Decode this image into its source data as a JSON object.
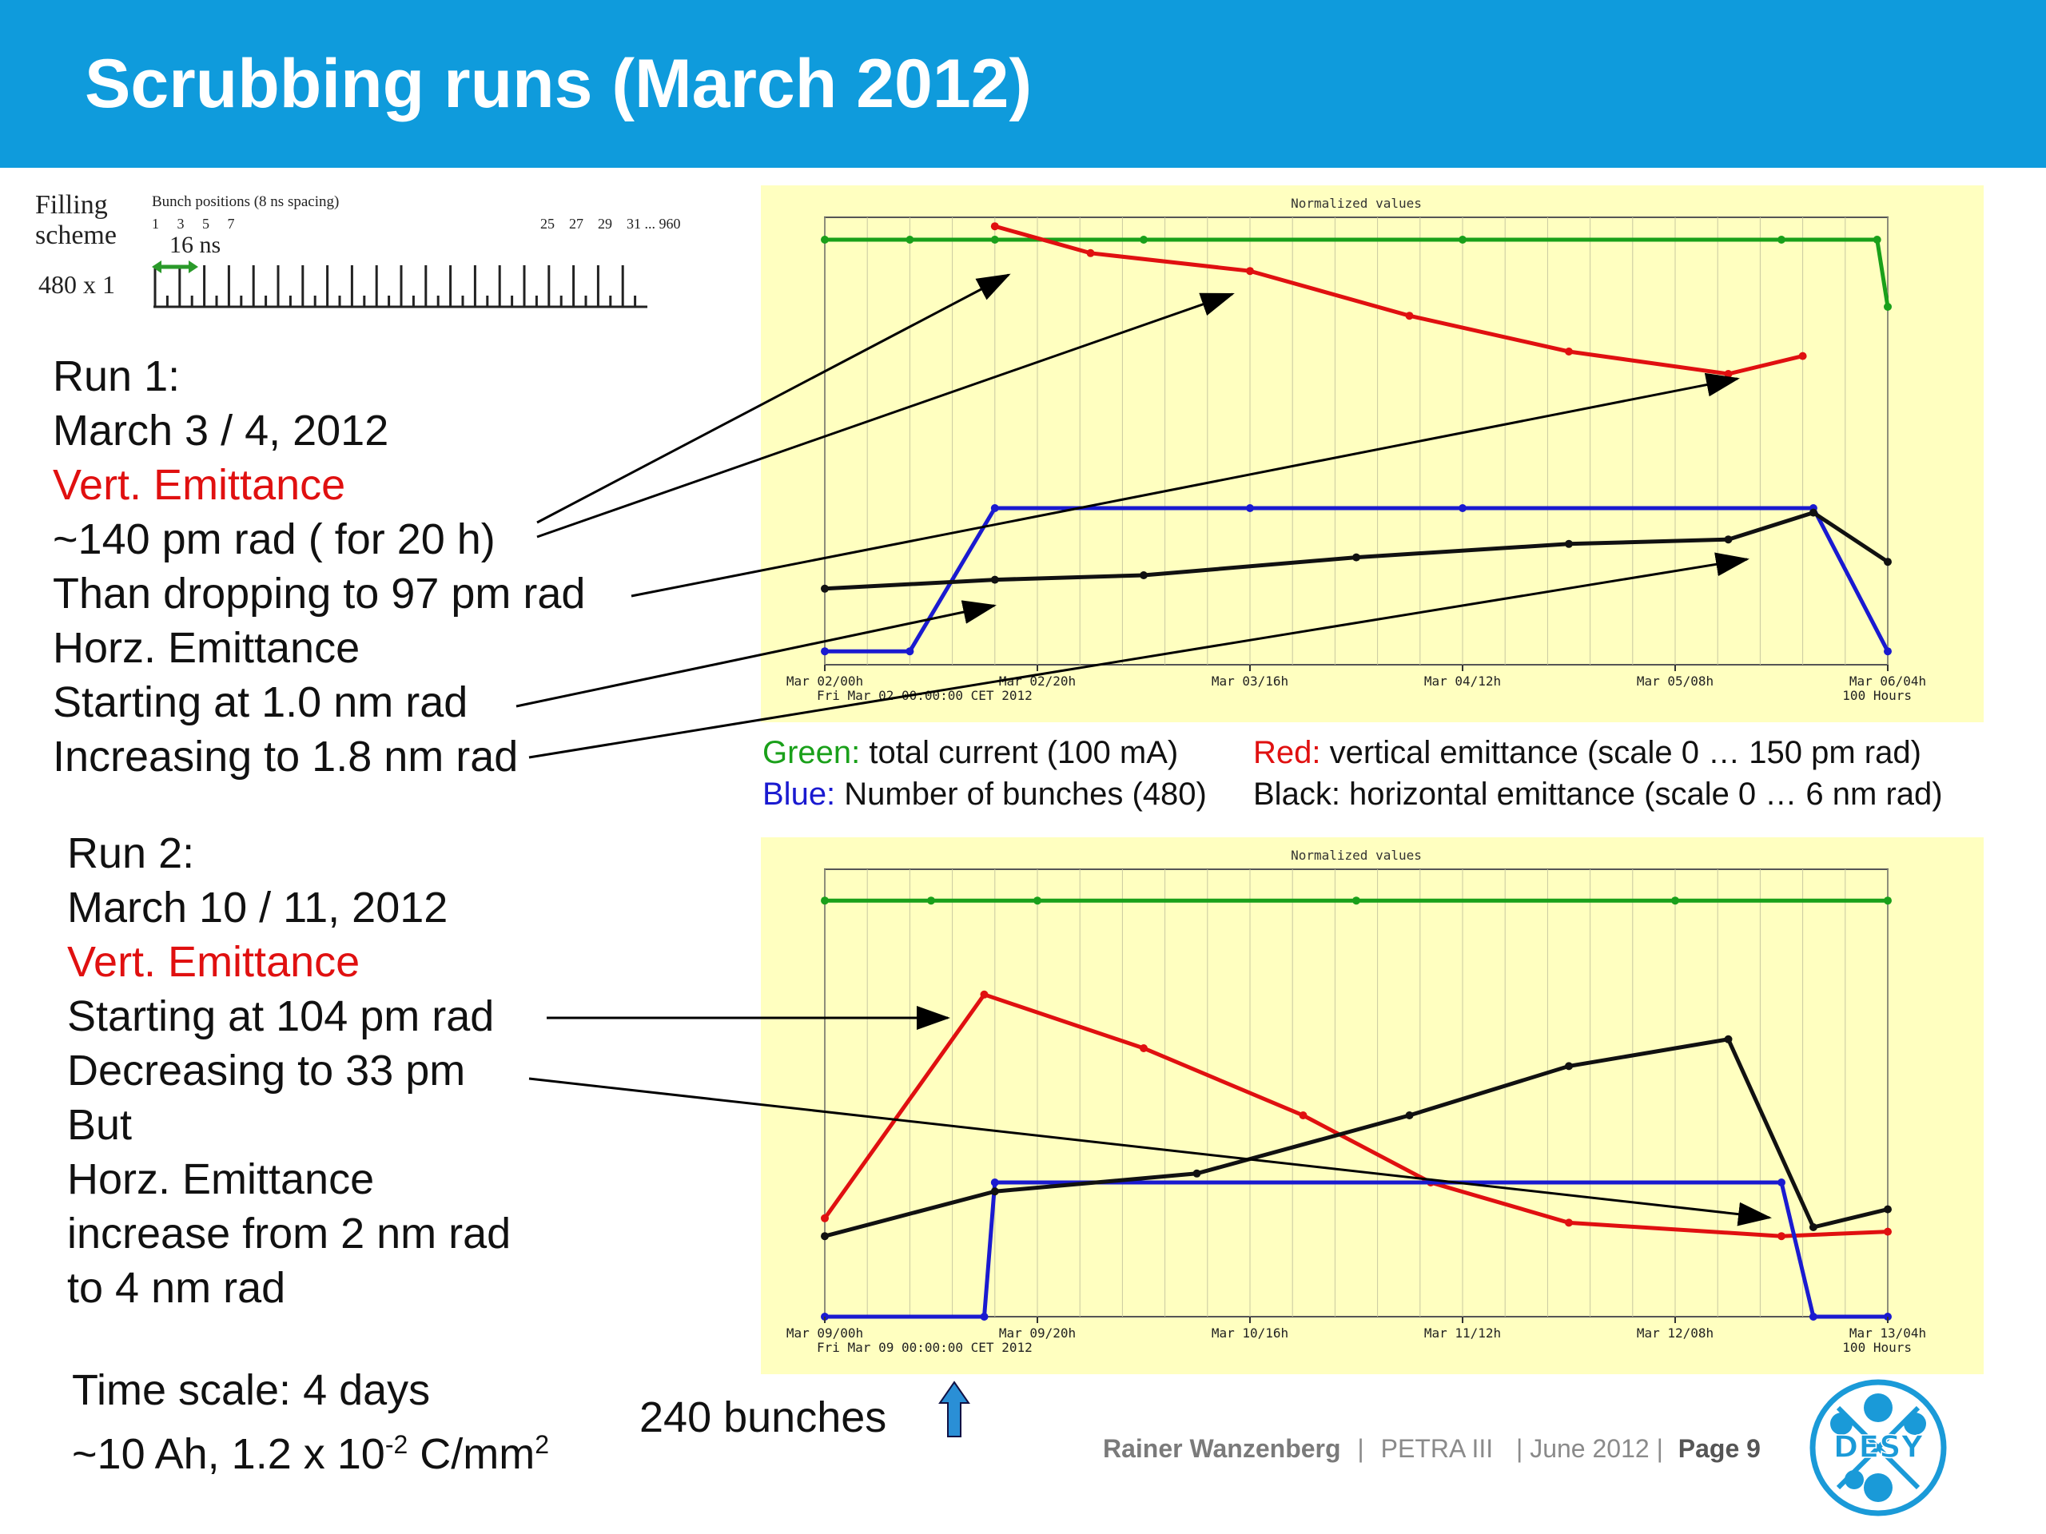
{
  "title": "Scrubbing runs (March 2012)",
  "filling": {
    "label_line1": "Filling",
    "label_line2": "scheme",
    "pattern": "480 x 1",
    "bunch_positions_label": "Bunch positions (8 ns spacing)",
    "left_numbers": "1     3     5     7",
    "right_numbers": "25    27    29    31 ... 960",
    "spacing": "16 ns"
  },
  "run1": {
    "lines": [
      "Run 1:",
      "March 3 / 4, 2012",
      "Vert. Emittance",
      "~140 pm rad ( for 20 h)",
      "Than dropping to 97 pm rad",
      "Horz. Emittance",
      "Starting at 1.0 nm rad",
      "Increasing to 1.8 nm rad"
    ]
  },
  "run2": {
    "lines": [
      "Run 2:",
      "March 10 / 11, 2012",
      "Vert. Emittance",
      "Starting at 104 pm rad",
      "Decreasing to 33 pm",
      "But",
      "Horz. Emittance",
      "increase from 2 nm rad",
      "to 4 nm rad"
    ]
  },
  "timescale": {
    "line1": "Time scale: 4 days",
    "line2_prefix": "~10 Ah, 1.2 x 10",
    "line2_exp": "-2",
    "line2_mid": " C/mm",
    "line2_sup": "2"
  },
  "bunches_note": "240 bunches",
  "legend": {
    "green_key": "Green:",
    "green_text": " total current (100 mA)",
    "red_key": "Red:",
    "red_text": " vertical emittance (scale 0 … 150 pm rad)",
    "blue_key": "Blue:",
    "blue_text": " Number of bunches (480)",
    "black_text": "Black: horizontal emittance (scale 0 … 6 nm rad)"
  },
  "footer": {
    "author": "Rainer Wanzenberg",
    "sep1": "|",
    "project": "PETRA III",
    "date": "| June  2012 |",
    "page": "Page 9"
  },
  "logo_text": "DESY",
  "colors": {
    "banner": "#0f9bdc",
    "chart_bg": "#ffffc0",
    "green": "#1aa01a",
    "red": "#e01010",
    "blue": "#1a1ad0",
    "black": "#111111"
  },
  "chart_data": [
    {
      "type": "line",
      "title": "Normalized values",
      "x_ticks": [
        "Mar 02/00h",
        "Mar 02/20h",
        "Mar 03/16h",
        "Mar 04/12h",
        "Mar 05/08h",
        "Mar 06/04h"
      ],
      "x_sublabel_left": "Fri Mar 02 00:00:00 CET 2012",
      "x_sublabel_right": "100 Hours",
      "series": [
        {
          "name": "total current",
          "color": "#1aa01a",
          "values": [
            [
              0,
              0.95
            ],
            [
              8,
              0.95
            ],
            [
              16,
              0.95
            ],
            [
              30,
              0.95
            ],
            [
              60,
              0.95
            ],
            [
              90,
              0.95
            ],
            [
              99,
              0.95
            ],
            [
              100,
              0.8
            ]
          ]
        },
        {
          "name": "vertical emittance",
          "color": "#e01010",
          "values": [
            [
              16,
              0.98
            ],
            [
              25,
              0.92
            ],
            [
              40,
              0.88
            ],
            [
              55,
              0.78
            ],
            [
              70,
              0.7
            ],
            [
              85,
              0.65
            ],
            [
              92,
              0.69
            ]
          ]
        },
        {
          "name": "number of bunches",
          "color": "#1a1ad0",
          "values": [
            [
              0,
              0.03
            ],
            [
              8,
              0.03
            ],
            [
              16,
              0.35
            ],
            [
              40,
              0.35
            ],
            [
              60,
              0.35
            ],
            [
              93,
              0.35
            ],
            [
              100,
              0.03
            ]
          ]
        },
        {
          "name": "horizontal emittance",
          "color": "#111111",
          "values": [
            [
              0,
              0.17
            ],
            [
              16,
              0.19
            ],
            [
              30,
              0.2
            ],
            [
              50,
              0.24
            ],
            [
              70,
              0.27
            ],
            [
              85,
              0.28
            ],
            [
              93,
              0.34
            ],
            [
              100,
              0.23
            ]
          ]
        }
      ]
    },
    {
      "type": "line",
      "title": "Normalized values",
      "x_ticks": [
        "Mar 09/00h",
        "Mar 09/20h",
        "Mar 10/16h",
        "Mar 11/12h",
        "Mar 12/08h",
        "Mar 13/04h"
      ],
      "x_sublabel_left": "Fri Mar 09 00:00:00 CET 2012",
      "x_sublabel_right": "100 Hours",
      "series": [
        {
          "name": "total current",
          "color": "#1aa01a",
          "values": [
            [
              0,
              0.93
            ],
            [
              10,
              0.93
            ],
            [
              20,
              0.93
            ],
            [
              50,
              0.93
            ],
            [
              80,
              0.93
            ],
            [
              100,
              0.93
            ]
          ]
        },
        {
          "name": "vertical emittance",
          "color": "#e01010",
          "values": [
            [
              0,
              0.22
            ],
            [
              15,
              0.72
            ],
            [
              30,
              0.6
            ],
            [
              45,
              0.45
            ],
            [
              57,
              0.3
            ],
            [
              70,
              0.21
            ],
            [
              90,
              0.18
            ],
            [
              100,
              0.19
            ]
          ]
        },
        {
          "name": "number of bunches",
          "color": "#1a1ad0",
          "values": [
            [
              0,
              0.0
            ],
            [
              15,
              0.0
            ],
            [
              16,
              0.3
            ],
            [
              90,
              0.3
            ],
            [
              93,
              0.0
            ],
            [
              100,
              0.0
            ]
          ]
        },
        {
          "name": "horizontal emittance",
          "color": "#111111",
          "values": [
            [
              0,
              0.18
            ],
            [
              16,
              0.28
            ],
            [
              35,
              0.32
            ],
            [
              55,
              0.45
            ],
            [
              70,
              0.56
            ],
            [
              85,
              0.62
            ],
            [
              93,
              0.2
            ],
            [
              100,
              0.24
            ]
          ]
        }
      ]
    }
  ]
}
